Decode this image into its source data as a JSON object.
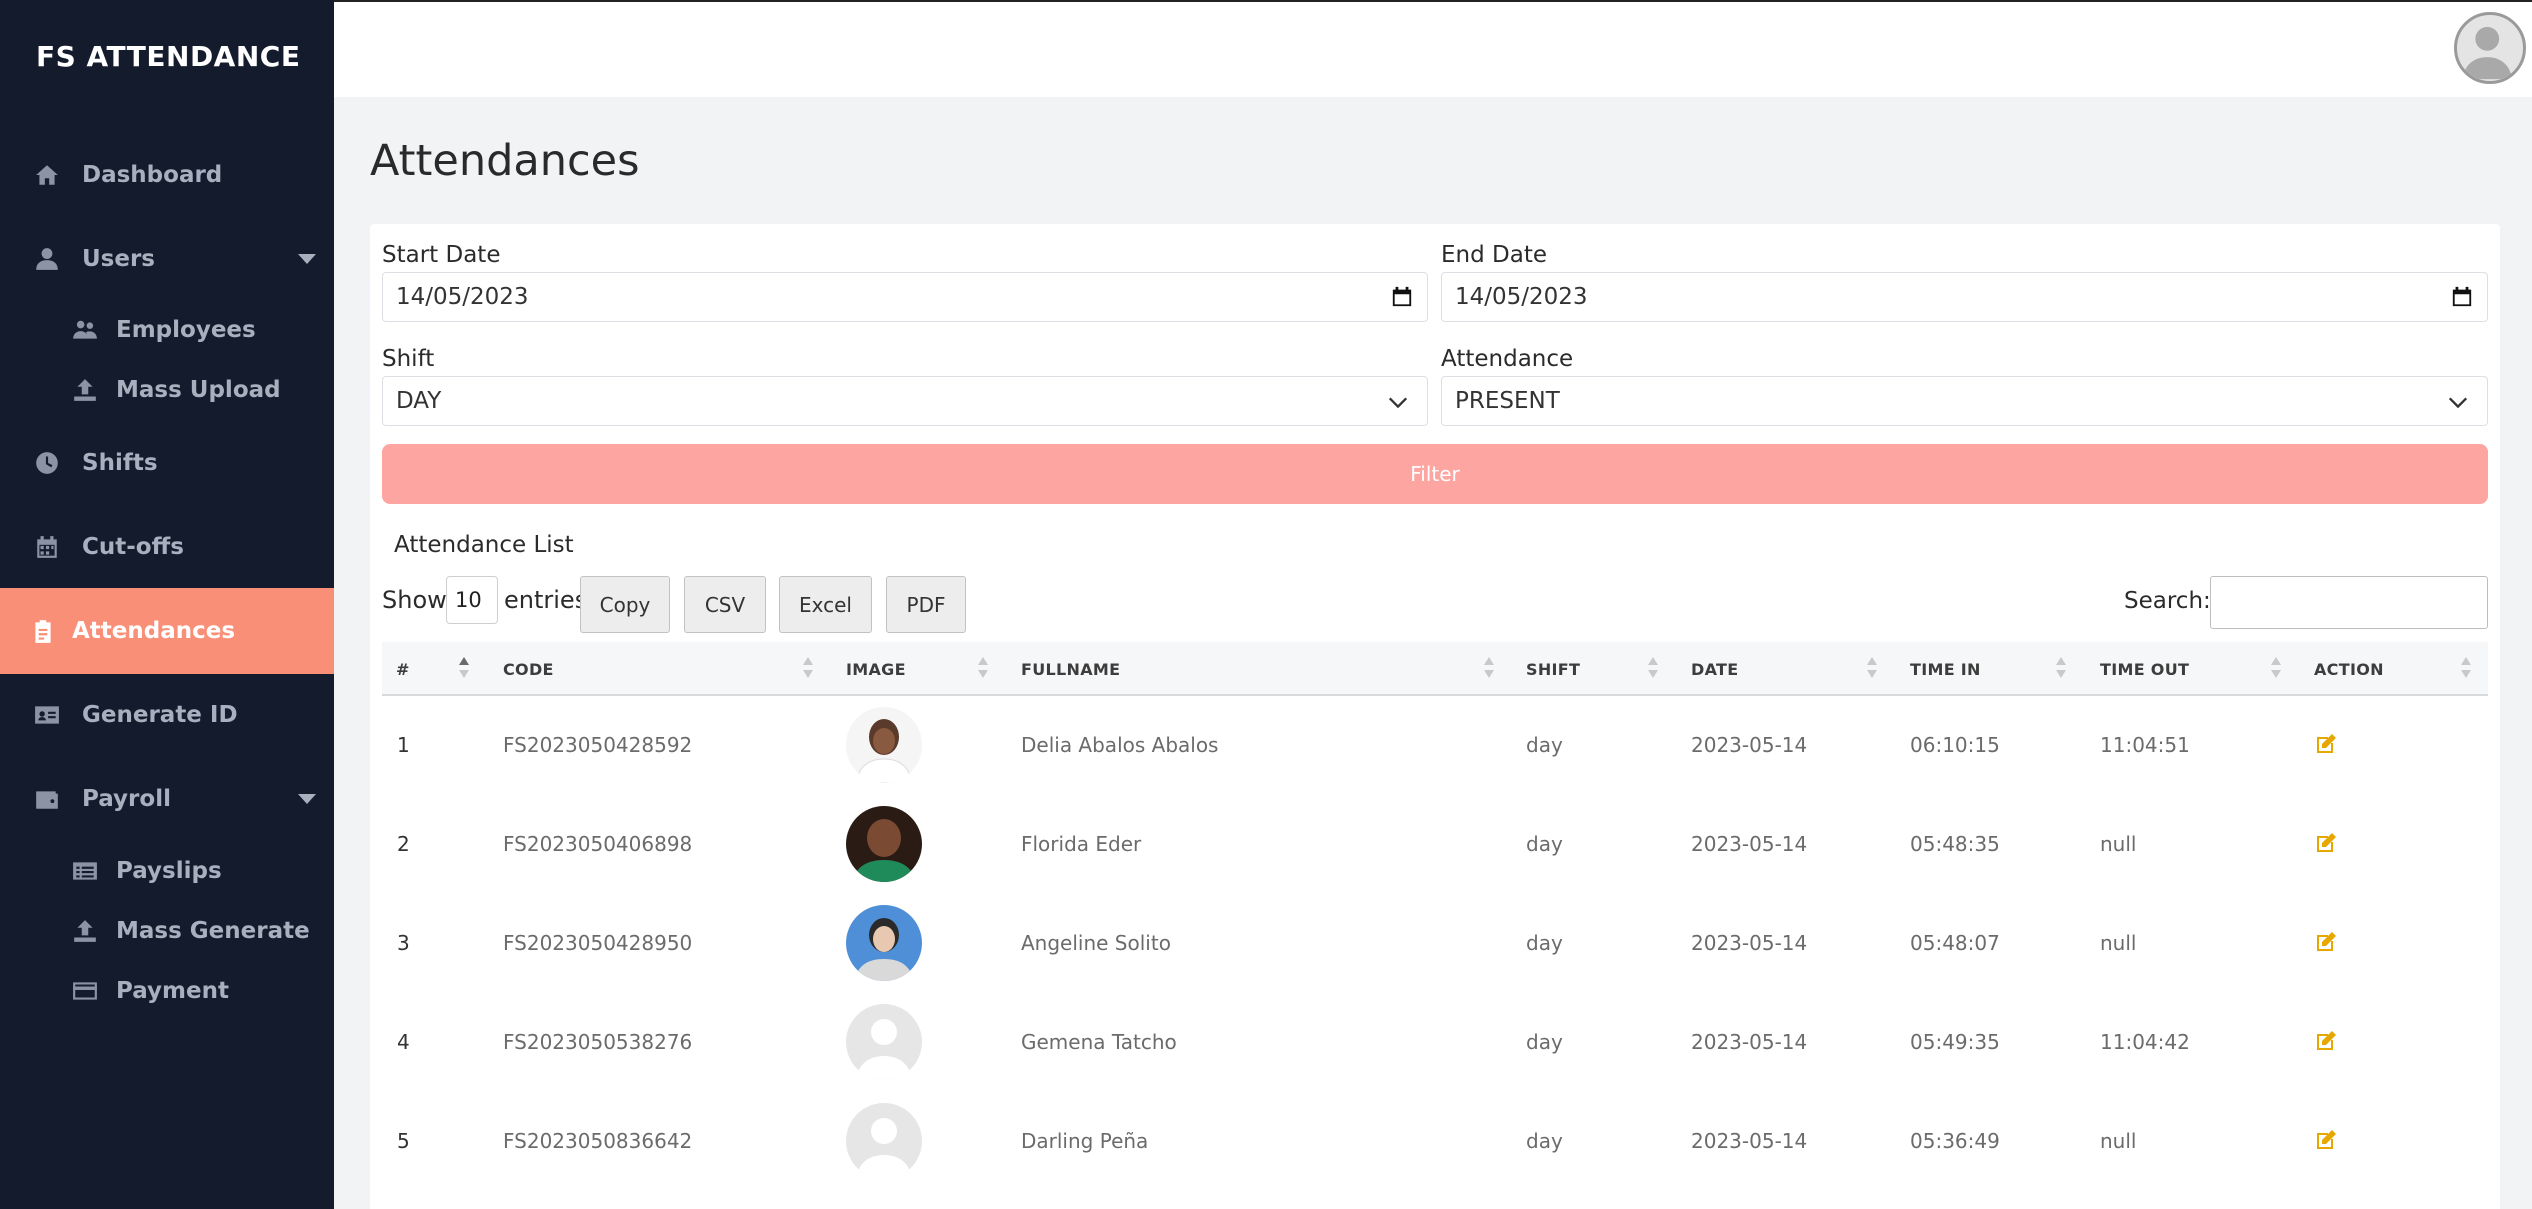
{
  "app": {
    "brand": "FS ATTENDANCE"
  },
  "sidebar": {
    "items": [
      {
        "label": "Dashboard",
        "icon": "home-icon"
      },
      {
        "label": "Users",
        "icon": "user-icon",
        "expandable": true
      },
      {
        "label": "Employees",
        "icon": "users-group-icon",
        "sub": true
      },
      {
        "label": "Mass Upload",
        "icon": "upload-icon",
        "sub": true
      },
      {
        "label": "Shifts",
        "icon": "clock-icon"
      },
      {
        "label": "Cut-offs",
        "icon": "calendar-icon"
      },
      {
        "label": "Attendances",
        "icon": "clipboard-icon",
        "active": true
      },
      {
        "label": "Generate ID",
        "icon": "id-card-icon"
      },
      {
        "label": "Payroll",
        "icon": "wallet-icon",
        "expandable": true
      },
      {
        "label": "Payslips",
        "icon": "receipt-icon",
        "sub": true
      },
      {
        "label": "Mass Generate",
        "icon": "upload-icon",
        "sub": true
      },
      {
        "label": "Payment",
        "icon": "credit-card-icon",
        "sub": true
      }
    ]
  },
  "page": {
    "title": "Attendances"
  },
  "filters": {
    "start_date_label": "Start Date",
    "start_date": "14/05/2023",
    "end_date_label": "End Date",
    "end_date": "14/05/2023",
    "shift_label": "Shift",
    "shift": "DAY",
    "attendance_label": "Attendance",
    "attendance": "PRESENT",
    "filter_button": "Filter"
  },
  "list": {
    "title": "Attendance List",
    "show_label": "Show",
    "entries_value": "10",
    "entries_label": "entries",
    "buttons": [
      "Copy",
      "CSV",
      "Excel",
      "PDF"
    ],
    "search_label": "Search:"
  },
  "table": {
    "columns": [
      "#",
      "CODE",
      "IMAGE",
      "FULLNAME",
      "SHIFT",
      "DATE",
      "TIME IN",
      "TIME OUT",
      "ACTION"
    ],
    "rows": [
      {
        "num": "1",
        "code": "FS2023050428592",
        "photo": "photo-woman-white",
        "fullname": "Delia Abalos Abalos",
        "shift": "day",
        "date": "2023-05-14",
        "time_in": "06:10:15",
        "time_out": "11:04:51"
      },
      {
        "num": "2",
        "code": "FS2023050406898",
        "photo": "photo-woman-green",
        "fullname": "Florida Eder",
        "shift": "day",
        "date": "2023-05-14",
        "time_in": "05:48:35",
        "time_out": "null"
      },
      {
        "num": "3",
        "code": "FS2023050428950",
        "photo": "photo-woman-blue",
        "fullname": "Angeline Solito",
        "shift": "day",
        "date": "2023-05-14",
        "time_in": "05:48:07",
        "time_out": "null"
      },
      {
        "num": "4",
        "code": "FS2023050538276",
        "photo": "default-avatar",
        "fullname": "Gemena Tatcho",
        "shift": "day",
        "date": "2023-05-14",
        "time_in": "05:49:35",
        "time_out": "11:04:42"
      },
      {
        "num": "5",
        "code": "FS2023050836642",
        "photo": "default-avatar",
        "fullname": "Darling Peña",
        "shift": "day",
        "date": "2023-05-14",
        "time_in": "05:36:49",
        "time_out": "null"
      }
    ]
  },
  "colors": {
    "sidebar_bg": "#141b2d",
    "active_item": "#fa8f78",
    "filter_button": "#fca5a1",
    "edit_icon": "#e6a800"
  }
}
